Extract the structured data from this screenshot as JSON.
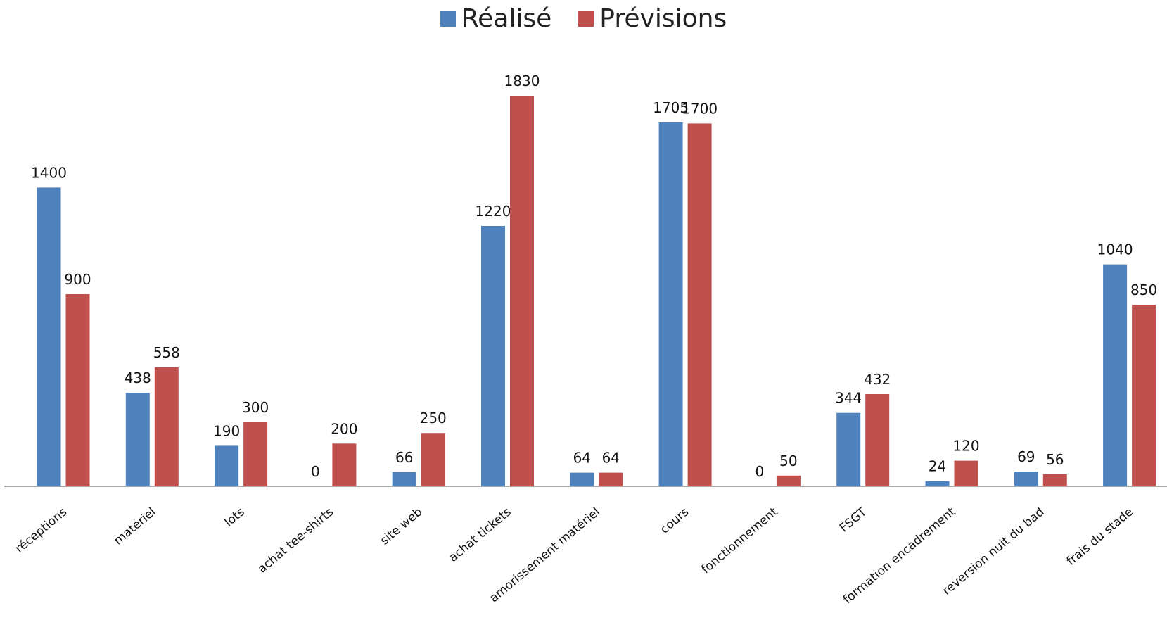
{
  "chart_data": {
    "type": "bar",
    "title": "",
    "xlabel": "",
    "ylabel": "",
    "ylim": [
      0,
      1900
    ],
    "grid": false,
    "legend_position": "top-center",
    "categories": [
      "réceptions",
      "matériel",
      "lots",
      "achat tee-shirts",
      "site web",
      "achat tickets",
      "amorissement matériel",
      "cours",
      "fonctionnement",
      "FSGT",
      "formation encadrement",
      "reversion nuit du bad",
      "frais du stade"
    ],
    "series": [
      {
        "name": "Réalisé",
        "color": "#4F81BD",
        "values": [
          1400,
          438,
          190,
          0,
          66,
          1220,
          64,
          1705,
          0,
          344,
          24,
          69,
          1040
        ]
      },
      {
        "name": "Prévisions",
        "color": "#C0504D",
        "values": [
          900,
          558,
          300,
          200,
          250,
          1830,
          64,
          1700,
          50,
          432,
          120,
          56,
          850
        ]
      }
    ]
  }
}
